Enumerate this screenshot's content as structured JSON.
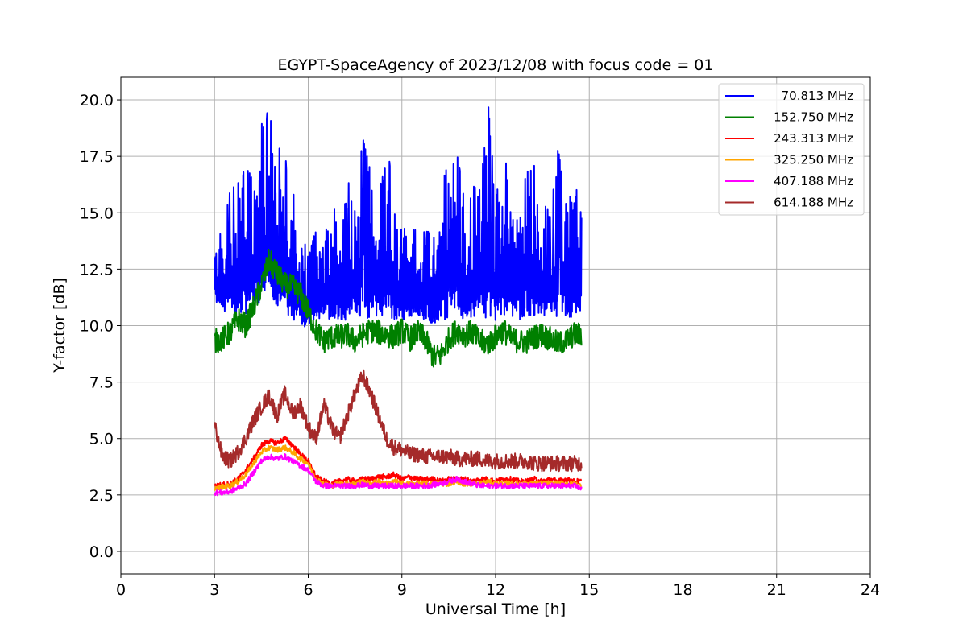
{
  "chart_data": {
    "type": "line",
    "title": "EGYPT-SpaceAgency of 2023/12/08 with focus code = 01",
    "xlabel": "Universal Time [h]",
    "ylabel": "Y-factor [dB]",
    "xlim": [
      0,
      24
    ],
    "ylim": [
      -1.0,
      21.0
    ],
    "xticks": [
      0,
      3,
      6,
      9,
      12,
      15,
      18,
      21,
      24
    ],
    "yticks": [
      0.0,
      2.5,
      5.0,
      7.5,
      10.0,
      12.5,
      15.0,
      17.5,
      20.0
    ],
    "xtick_labels": [
      "0",
      "3",
      "6",
      "9",
      "12",
      "15",
      "18",
      "21",
      "24"
    ],
    "ytick_labels": [
      "0.0",
      "2.5",
      "5.0",
      "7.5",
      "10.0",
      "12.5",
      "15.0",
      "17.5",
      "20.0"
    ],
    "grid": true,
    "legend_position": "top-right",
    "x_range_of_data": [
      3.0,
      14.75
    ],
    "series": [
      {
        "name": "70.813 MHz",
        "color": "#0000ff",
        "x": [
          3.0,
          3.25,
          3.5,
          3.75,
          4.0,
          4.25,
          4.5,
          4.75,
          5.0,
          5.25,
          5.5,
          5.75,
          6.0,
          6.25,
          6.5,
          6.75,
          7.0,
          7.25,
          7.5,
          7.75,
          8.0,
          8.25,
          8.5,
          8.75,
          9.0,
          9.25,
          9.5,
          9.75,
          10.0,
          10.25,
          10.5,
          10.75,
          11.0,
          11.25,
          11.5,
          11.75,
          12.0,
          12.25,
          12.5,
          12.75,
          13.0,
          13.25,
          13.5,
          13.75,
          14.0,
          14.25,
          14.5,
          14.75
        ],
        "y_low": [
          11.0,
          10.7,
          10.5,
          10.4,
          10.5,
          10.8,
          11.0,
          11.2,
          10.9,
          10.6,
          10.3,
          10.0,
          9.9,
          10.2,
          10.4,
          10.2,
          10.3,
          10.2,
          10.5,
          10.3,
          10.2,
          10.4,
          10.2,
          10.1,
          10.3,
          10.2,
          10.5,
          10.2,
          10.0,
          10.3,
          10.2,
          10.4,
          10.3,
          10.2,
          10.5,
          10.3,
          10.2,
          10.5,
          10.3,
          10.2,
          10.4,
          10.3,
          10.5,
          10.2,
          10.3,
          10.4,
          10.2,
          10.6
        ],
        "y_high": [
          14.2,
          14.0,
          16.0,
          16.3,
          17.0,
          16.5,
          18.9,
          19.6,
          18.0,
          17.5,
          16.0,
          14.5,
          13.0,
          14.3,
          13.5,
          16.0,
          14.8,
          16.5,
          15.5,
          18.3,
          16.8,
          16.0,
          18.8,
          15.0,
          14.2,
          14.5,
          15.5,
          14.0,
          14.8,
          15.2,
          18.5,
          17.9,
          15.5,
          16.2,
          16.0,
          20.1,
          15.5,
          17.7,
          16.2,
          15.4,
          16.8,
          17.1,
          15.8,
          14.8,
          17.9,
          15.5,
          15.9,
          16.2
        ],
        "pattern": "dense-oscillation"
      },
      {
        "name": "152.750 MHz",
        "color": "#008000",
        "x": [
          3.0,
          3.25,
          3.5,
          3.75,
          4.0,
          4.25,
          4.5,
          4.75,
          5.0,
          5.25,
          5.5,
          5.75,
          6.0,
          6.25,
          6.5,
          6.75,
          7.0,
          7.25,
          7.5,
          7.75,
          8.0,
          8.25,
          8.5,
          8.75,
          9.0,
          9.25,
          9.5,
          9.75,
          10.0,
          10.25,
          10.5,
          10.75,
          11.0,
          11.25,
          11.5,
          11.75,
          12.0,
          12.25,
          12.5,
          12.75,
          13.0,
          13.25,
          13.5,
          13.75,
          14.0,
          14.25,
          14.5,
          14.75
        ],
        "y": [
          9.3,
          9.4,
          9.7,
          10.3,
          10.0,
          10.8,
          11.8,
          12.9,
          12.3,
          11.8,
          11.7,
          11.4,
          10.6,
          9.8,
          9.3,
          9.5,
          9.5,
          9.6,
          9.3,
          9.6,
          9.8,
          9.7,
          9.6,
          9.5,
          9.8,
          9.4,
          9.7,
          9.4,
          8.6,
          8.7,
          9.4,
          9.8,
          9.6,
          9.7,
          9.3,
          9.2,
          9.5,
          9.8,
          9.4,
          9.3,
          9.3,
          9.5,
          9.6,
          9.4,
          9.2,
          9.3,
          9.6,
          9.6
        ]
      },
      {
        "name": "243.313 MHz",
        "color": "#ff0000",
        "x": [
          3.0,
          3.25,
          3.5,
          3.75,
          4.0,
          4.25,
          4.5,
          4.75,
          5.0,
          5.25,
          5.5,
          5.75,
          6.0,
          6.25,
          6.5,
          6.75,
          7.0,
          7.25,
          7.5,
          7.75,
          8.0,
          8.25,
          8.5,
          8.75,
          9.0,
          9.25,
          9.5,
          9.75,
          10.0,
          10.25,
          10.5,
          10.75,
          11.0,
          11.25,
          11.5,
          11.75,
          12.0,
          12.25,
          12.5,
          12.75,
          13.0,
          13.25,
          13.5,
          13.75,
          14.0,
          14.25,
          14.5,
          14.75
        ],
        "y": [
          2.9,
          2.95,
          3.0,
          3.2,
          3.6,
          4.1,
          4.7,
          4.9,
          4.8,
          5.0,
          4.7,
          4.3,
          4.0,
          3.3,
          3.1,
          3.0,
          3.1,
          3.2,
          3.1,
          3.2,
          3.2,
          3.3,
          3.3,
          3.4,
          3.2,
          3.3,
          3.2,
          3.2,
          3.2,
          3.1,
          3.2,
          3.2,
          3.2,
          3.1,
          3.2,
          3.2,
          3.1,
          3.2,
          3.2,
          3.1,
          3.1,
          3.2,
          3.1,
          3.2,
          3.1,
          3.2,
          3.1,
          3.1
        ]
      },
      {
        "name": "325.250 MHz",
        "color": "#ffa500",
        "x": [
          3.0,
          3.25,
          3.5,
          3.75,
          4.0,
          4.25,
          4.5,
          4.75,
          5.0,
          5.25,
          5.5,
          5.75,
          6.0,
          6.25,
          6.5,
          6.75,
          7.0,
          7.25,
          7.5,
          7.75,
          8.0,
          8.25,
          8.5,
          8.75,
          9.0,
          9.25,
          9.5,
          9.75,
          10.0,
          10.25,
          10.5,
          10.75,
          11.0,
          11.25,
          11.5,
          11.75,
          12.0,
          12.25,
          12.5,
          12.75,
          13.0,
          13.25,
          13.5,
          13.75,
          14.0,
          14.25,
          14.5,
          14.75
        ],
        "y": [
          2.8,
          2.85,
          2.9,
          3.1,
          3.4,
          3.9,
          4.4,
          4.6,
          4.5,
          4.6,
          4.4,
          4.1,
          3.9,
          3.2,
          3.0,
          2.9,
          3.0,
          3.0,
          3.0,
          3.1,
          3.0,
          3.1,
          3.0,
          3.1,
          3.0,
          3.0,
          3.0,
          3.0,
          3.0,
          3.0,
          3.0,
          3.1,
          3.0,
          3.0,
          3.0,
          3.1,
          3.0,
          3.0,
          3.0,
          3.0,
          3.0,
          3.0,
          3.0,
          3.0,
          3.0,
          3.0,
          3.0,
          2.9
        ]
      },
      {
        "name": "407.188 MHz",
        "color": "#ff00ff",
        "x": [
          3.0,
          3.25,
          3.5,
          3.75,
          4.0,
          4.25,
          4.5,
          4.75,
          5.0,
          5.25,
          5.5,
          5.75,
          6.0,
          6.25,
          6.5,
          6.75,
          7.0,
          7.25,
          7.5,
          7.75,
          8.0,
          8.25,
          8.5,
          8.75,
          9.0,
          9.25,
          9.5,
          9.75,
          10.0,
          10.25,
          10.5,
          10.75,
          11.0,
          11.25,
          11.5,
          11.75,
          12.0,
          12.25,
          12.5,
          12.75,
          13.0,
          13.25,
          13.5,
          13.75,
          14.0,
          14.25,
          14.5,
          14.75
        ],
        "y": [
          2.6,
          2.6,
          2.65,
          2.8,
          3.0,
          3.5,
          4.0,
          4.2,
          4.1,
          4.2,
          4.0,
          3.8,
          3.6,
          3.1,
          2.9,
          2.9,
          2.9,
          2.9,
          2.9,
          2.95,
          2.9,
          2.9,
          2.9,
          2.9,
          2.9,
          2.9,
          2.9,
          2.9,
          2.95,
          3.0,
          3.1,
          3.2,
          3.1,
          3.0,
          2.9,
          2.9,
          2.9,
          2.9,
          2.9,
          2.9,
          2.9,
          2.9,
          2.9,
          2.9,
          2.9,
          2.9,
          2.9,
          2.8
        ]
      },
      {
        "name": "614.188 MHz",
        "color": "#a52a2a",
        "x": [
          3.0,
          3.25,
          3.5,
          3.75,
          4.0,
          4.25,
          4.5,
          4.75,
          5.0,
          5.25,
          5.5,
          5.75,
          6.0,
          6.25,
          6.5,
          6.75,
          7.0,
          7.25,
          7.5,
          7.75,
          8.0,
          8.25,
          8.5,
          8.75,
          9.0,
          9.25,
          9.5,
          9.75,
          10.0,
          10.25,
          10.5,
          10.75,
          11.0,
          11.25,
          11.5,
          11.75,
          12.0,
          12.25,
          12.5,
          12.75,
          13.0,
          13.25,
          13.5,
          13.75,
          14.0,
          14.25,
          14.5,
          14.75
        ],
        "y": [
          5.6,
          4.2,
          4.0,
          4.4,
          5.0,
          5.8,
          6.4,
          6.9,
          6.0,
          7.0,
          6.1,
          6.5,
          5.5,
          5.0,
          6.5,
          5.5,
          5.0,
          6.0,
          7.0,
          7.8,
          7.0,
          6.0,
          5.0,
          4.6,
          4.5,
          4.3,
          4.3,
          4.2,
          4.2,
          4.2,
          4.2,
          4.1,
          4.1,
          4.1,
          4.1,
          4.0,
          4.0,
          4.0,
          4.0,
          4.0,
          4.0,
          3.9,
          3.9,
          3.9,
          3.9,
          3.9,
          3.9,
          3.9
        ]
      }
    ]
  }
}
